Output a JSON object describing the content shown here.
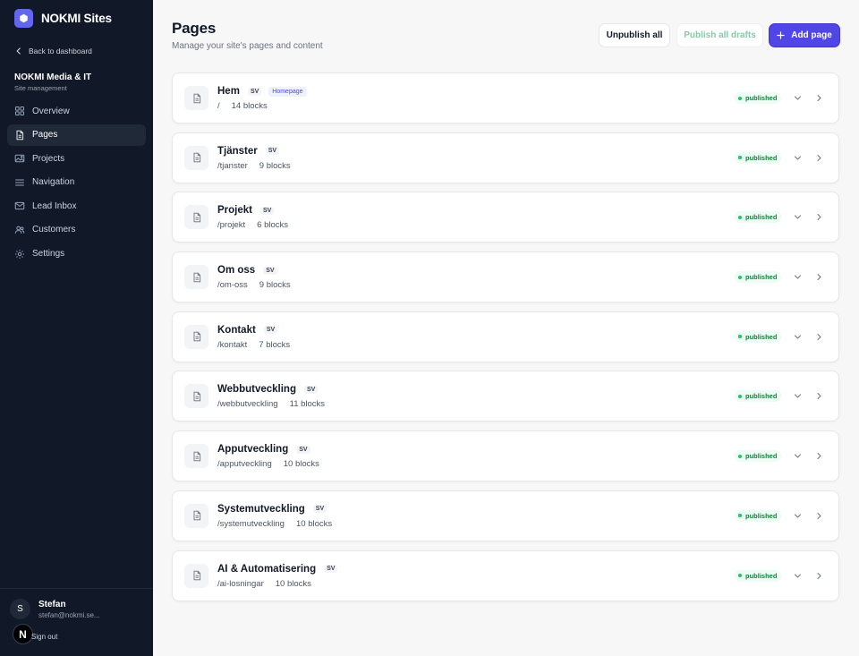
{
  "app": {
    "brand_name": "NOKMI Sites"
  },
  "sidebar": {
    "back_label": "Back to dashboard",
    "site_name": "NOKMI Media & IT",
    "site_sub": "Site management",
    "items": [
      {
        "label": "Overview",
        "icon": "grid-icon"
      },
      {
        "label": "Pages",
        "icon": "document-icon",
        "active": true
      },
      {
        "label": "Projects",
        "icon": "image-icon"
      },
      {
        "label": "Navigation",
        "icon": "menu-icon"
      },
      {
        "label": "Lead Inbox",
        "icon": "inbox-icon"
      },
      {
        "label": "Customers",
        "icon": "users-icon"
      },
      {
        "label": "Settings",
        "icon": "gear-icon"
      }
    ],
    "user": {
      "initial": "S",
      "name": "Stefan",
      "email": "stefan@nokmi.se...",
      "sign_out": "Sign out",
      "badge": "N"
    }
  },
  "header": {
    "title": "Pages",
    "subtitle": "Manage your site's pages and content",
    "unpublish_all": "Unpublish all",
    "publish_all": "Publish all drafts",
    "add_page": "Add page"
  },
  "pages": [
    {
      "title": "Hem",
      "lang": "SV",
      "badge": "Homepage",
      "path": "/",
      "blocks": "14 blocks",
      "status": "published"
    },
    {
      "title": "Tjänster",
      "lang": "SV",
      "path": "/tjanster",
      "blocks": "9 blocks",
      "status": "published"
    },
    {
      "title": "Projekt",
      "lang": "SV",
      "path": "/projekt",
      "blocks": "6 blocks",
      "status": "published"
    },
    {
      "title": "Om oss",
      "lang": "SV",
      "path": "/om-oss",
      "blocks": "9 blocks",
      "status": "published"
    },
    {
      "title": "Kontakt",
      "lang": "SV",
      "path": "/kontakt",
      "blocks": "7 blocks",
      "status": "published"
    },
    {
      "title": "Webbutveckling",
      "lang": "SV",
      "path": "/webbutveckling",
      "blocks": "11 blocks",
      "status": "published"
    },
    {
      "title": "Apputveckling",
      "lang": "SV",
      "path": "/apputveckling",
      "blocks": "10 blocks",
      "status": "published"
    },
    {
      "title": "Systemutveckling",
      "lang": "SV",
      "path": "/systemutveckling",
      "blocks": "10 blocks",
      "status": "published"
    },
    {
      "title": "AI & Automatisering",
      "lang": "SV",
      "path": "/ai-losningar",
      "blocks": "10 blocks",
      "status": "published"
    }
  ],
  "colors": {
    "sidebar_bg": "#111827",
    "accent": "#4f46e5",
    "published": "#15803d"
  }
}
